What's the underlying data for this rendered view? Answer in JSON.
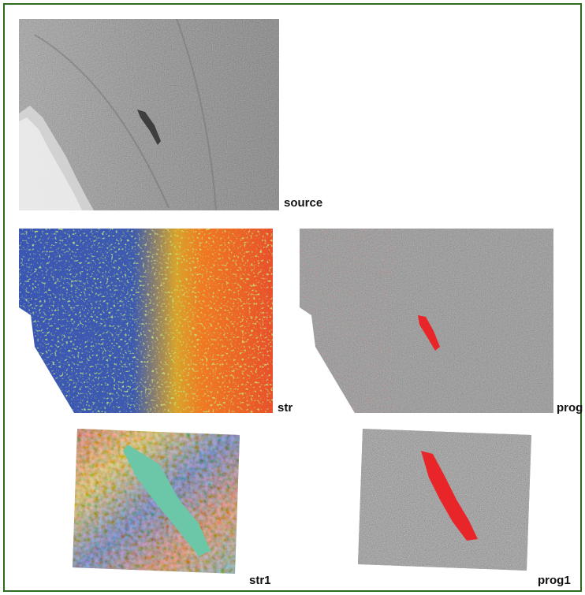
{
  "figure": {
    "border_color": "#2e6b1e",
    "panels": [
      {
        "id": "source",
        "label": "source",
        "colormap": "grayscale"
      },
      {
        "id": "str",
        "label": "str",
        "colormap": "blue-green-yellow-red"
      },
      {
        "id": "prog",
        "label": "prog",
        "colormap": "gray-with-red-overlay"
      },
      {
        "id": "str1",
        "label": "str1",
        "colormap": "rainbow"
      },
      {
        "id": "prog1",
        "label": "prog1",
        "colormap": "gray-with-red-overlay"
      }
    ]
  },
  "colors": {
    "oil_slick_red": "#e8262a",
    "str_blue": "#3a56b4",
    "str_orange": "#f07a22",
    "str1_cyan": "#6cc7a8"
  }
}
